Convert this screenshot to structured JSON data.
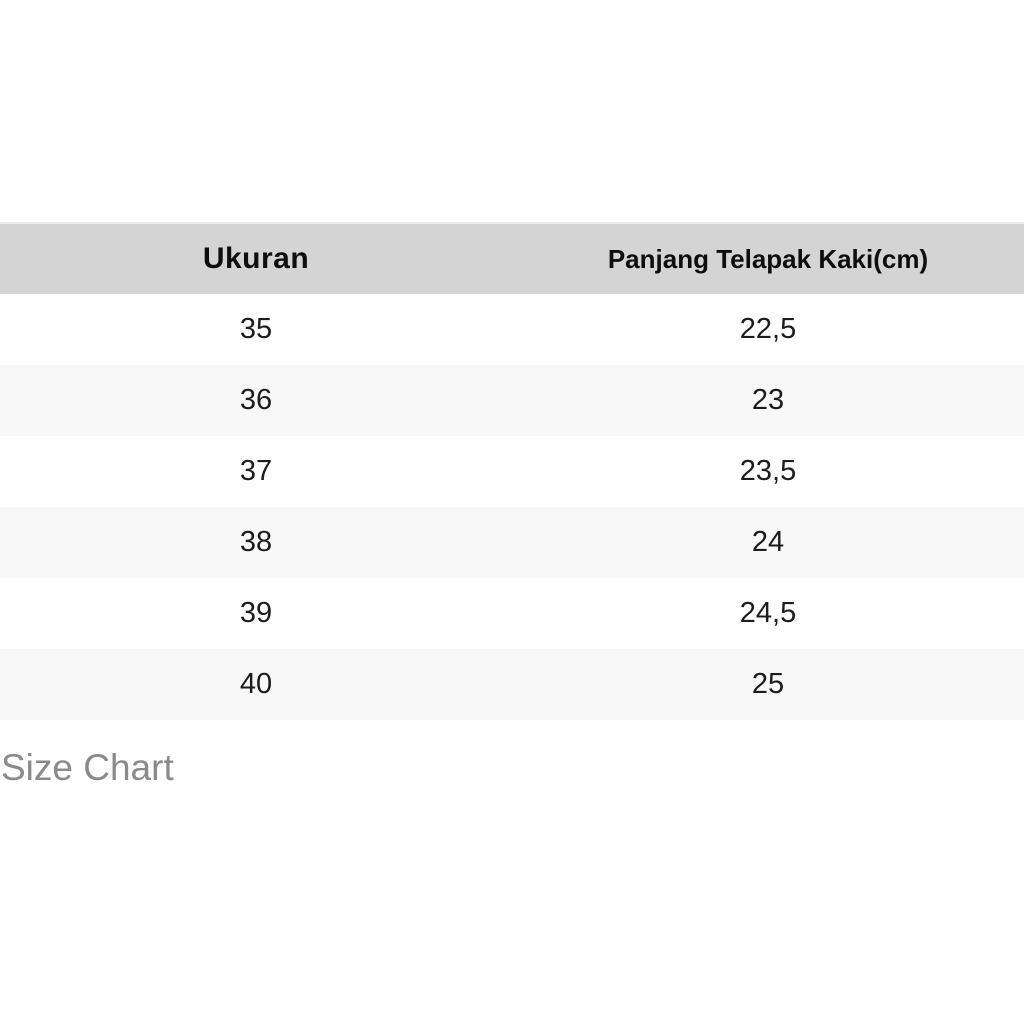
{
  "table": {
    "columns": [
      {
        "label": "Ukuran"
      },
      {
        "label": "Panjang Telapak Kaki(cm)"
      }
    ],
    "rows": [
      {
        "ukuran": "35",
        "panjang": "22,5"
      },
      {
        "ukuran": "36",
        "panjang": "23"
      },
      {
        "ukuran": "37",
        "panjang": "23,5"
      },
      {
        "ukuran": "38",
        "panjang": "24"
      },
      {
        "ukuran": "39",
        "panjang": "24,5"
      },
      {
        "ukuran": "40",
        "panjang": "25"
      }
    ]
  },
  "caption": {
    "label": "Size Chart"
  },
  "colors": {
    "header_bg": "#d4d4d4",
    "row_bg": "#ffffff",
    "row_alt_bg": "#f8f8f8",
    "header_text": "#0e0e0e",
    "body_text": "#1c1c1c",
    "caption_text": "#8a8a8a"
  },
  "chart_data": {
    "type": "table",
    "title": "Size Chart",
    "columns": [
      "Ukuran",
      "Panjang Telapak Kaki(cm)"
    ],
    "rows": [
      [
        "35",
        "22,5"
      ],
      [
        "36",
        "23"
      ],
      [
        "37",
        "23,5"
      ],
      [
        "38",
        "24"
      ],
      [
        "39",
        "24,5"
      ],
      [
        "40",
        "25"
      ]
    ],
    "layout": {
      "header_background": "#d4d4d4",
      "alternating_rows": true,
      "column_alignment": [
        "center",
        "center"
      ]
    }
  }
}
